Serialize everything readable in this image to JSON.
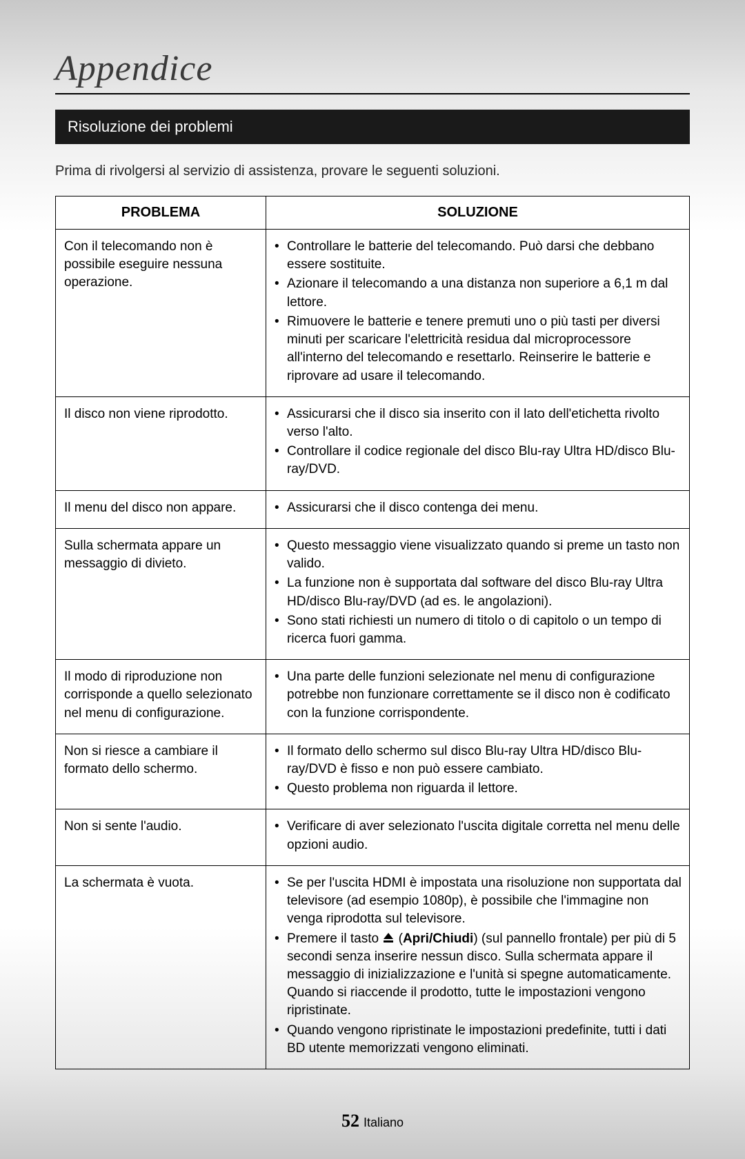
{
  "title": "Appendice",
  "section_title": "Risoluzione dei problemi",
  "intro": "Prima di rivolgersi al servizio di assistenza, provare le seguenti soluzioni.",
  "table": {
    "headers": {
      "problem": "PROBLEMA",
      "solution": "SOLUZIONE"
    },
    "rows": [
      {
        "problem": "Con il telecomando non è possibile eseguire nessuna operazione.",
        "solutions": [
          "Controllare le batterie del telecomando. Può darsi che debbano essere sostituite.",
          "Azionare il telecomando a una distanza non superiore a 6,1 m dal lettore.",
          "Rimuovere le batterie e tenere premuti uno o più tasti per diversi minuti per scaricare l'elettricità residua dal microprocessore all'interno del telecomando e resettarlo. Reinserire le batterie e riprovare ad usare il telecomando."
        ]
      },
      {
        "problem": "Il disco non viene riprodotto.",
        "solutions": [
          "Assicurarsi che il disco sia inserito con il lato dell'etichetta rivolto verso l'alto.",
          "Controllare il codice regionale del disco Blu-ray Ultra HD/disco Blu-ray/DVD."
        ]
      },
      {
        "problem": "Il menu del disco non appare.",
        "solutions": [
          "Assicurarsi che il disco contenga dei menu."
        ]
      },
      {
        "problem": "Sulla schermata appare un messaggio di divieto.",
        "solutions": [
          "Questo messaggio viene visualizzato quando si preme un tasto non valido.",
          "La funzione non è supportata dal software del disco Blu-ray Ultra HD/disco Blu-ray/DVD (ad es. le angolazioni).",
          "Sono stati richiesti un numero di titolo o di capitolo o un tempo di ricerca fuori gamma."
        ]
      },
      {
        "problem": "Il modo di riproduzione non corrisponde a quello selezionato nel menu di configurazione.",
        "solutions": [
          "Una parte delle funzioni selezionate nel menu di configurazione potrebbe non funzionare correttamente se il disco non è codificato con la funzione corrispondente."
        ]
      },
      {
        "problem": "Non si riesce a cambiare il formato dello schermo.",
        "solutions": [
          "Il formato dello schermo sul disco Blu-ray Ultra HD/disco Blu-ray/DVD è fisso e non può essere cambiato.",
          "Questo problema non riguarda il lettore."
        ]
      },
      {
        "problem": "Non si sente l'audio.",
        "solutions": [
          "Verificare di aver selezionato l'uscita digitale corretta nel menu delle opzioni audio."
        ]
      },
      {
        "problem": "La schermata è vuota.",
        "solutions_special": {
          "s1": "Se per l'uscita HDMI è impostata una risoluzione non supportata dal televisore (ad esempio 1080p), è possibile che l'immagine non venga riprodotta sul televisore.",
          "s2_pre": "Premere il tasto ",
          "s2_bold": "Apri/Chiudi",
          "s2_post": ") (sul pannello frontale) per più di 5 secondi senza inserire nessun disco. Sulla schermata appare il messaggio di inizializzazione e l'unità si spegne automaticamente. Quando si riaccende il prodotto, tutte le impostazioni vengono ripristinate.",
          "s3": "Quando vengono ripristinate le impostazioni predefinite, tutti i dati BD utente memorizzati vengono eliminati."
        }
      }
    ]
  },
  "footer": {
    "page_number": "52",
    "language": "Italiano"
  },
  "colors": {
    "text": "#000000",
    "title": "#3a3a3a",
    "section_bg": "#1a1a1a",
    "section_fg": "#ffffff",
    "border": "#000000"
  }
}
